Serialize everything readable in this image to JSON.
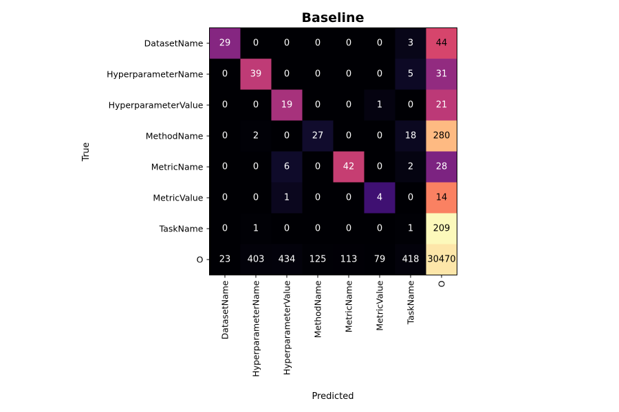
{
  "chart_data": {
    "type": "heatmap",
    "title": "Baseline",
    "xlabel": "Predicted",
    "ylabel": "True",
    "row_labels": [
      "DatasetName",
      "HyperparameterName",
      "HyperparameterValue",
      "MethodName",
      "MetricName",
      "MetricValue",
      "TaskName",
      "O"
    ],
    "col_labels": [
      "DatasetName",
      "HyperparameterName",
      "HyperparameterValue",
      "MethodName",
      "MetricName",
      "MetricValue",
      "TaskName",
      "O"
    ],
    "values": [
      [
        29,
        0,
        0,
        0,
        0,
        0,
        3,
        44
      ],
      [
        0,
        39,
        0,
        0,
        0,
        0,
        5,
        31
      ],
      [
        0,
        0,
        19,
        0,
        0,
        1,
        0,
        21
      ],
      [
        0,
        2,
        0,
        27,
        0,
        0,
        18,
        280
      ],
      [
        0,
        0,
        6,
        0,
        42,
        0,
        2,
        28
      ],
      [
        0,
        0,
        1,
        0,
        0,
        4,
        0,
        14
      ],
      [
        0,
        1,
        0,
        0,
        0,
        0,
        1,
        209
      ],
      [
        23,
        403,
        434,
        125,
        113,
        79,
        418,
        30470
      ]
    ],
    "colormap": "magma",
    "normalization": "row"
  }
}
